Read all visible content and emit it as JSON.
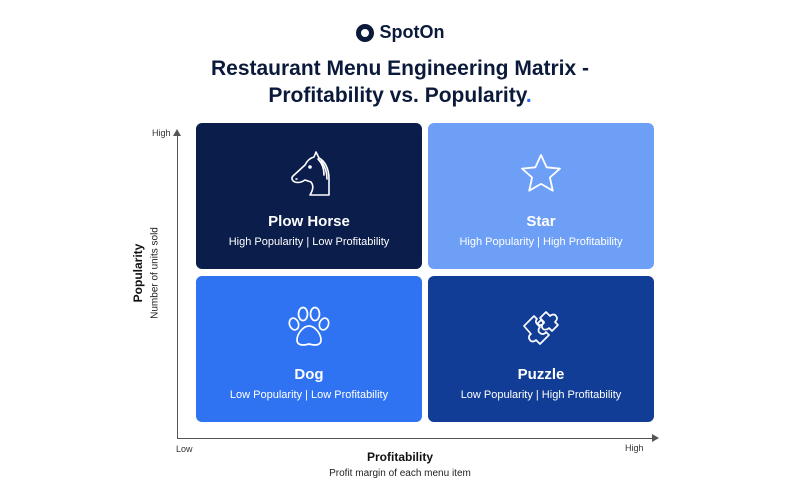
{
  "brand": {
    "name": "SpotOn"
  },
  "title": {
    "line1": "Restaurant Menu Engineering Matrix -",
    "line2": "Profitability vs. Popularity",
    "dot": "."
  },
  "axes": {
    "y_title": "Popularity",
    "y_subtitle": "Number of units sold",
    "y_high": "High",
    "x_title": "Profitability",
    "x_subtitle": "Profit margin of each menu item",
    "x_low": "Low",
    "x_high": "High"
  },
  "quadrants": {
    "plow_horse": {
      "name": "Plow Horse",
      "desc": "High Popularity | Low Profitability",
      "icon": "horse-icon",
      "color": "#0b1d4a"
    },
    "star": {
      "name": "Star",
      "desc": "High Popularity | High Profitability",
      "icon": "star-icon",
      "color": "#6e9ff7"
    },
    "dog": {
      "name": "Dog",
      "desc": "Low Popularity | Low Profitability",
      "icon": "paw-icon",
      "color": "#2f73f2"
    },
    "puzzle": {
      "name": "Puzzle",
      "desc": "Low Popularity | High Profitability",
      "icon": "puzzle-icon",
      "color": "#123d96"
    }
  }
}
